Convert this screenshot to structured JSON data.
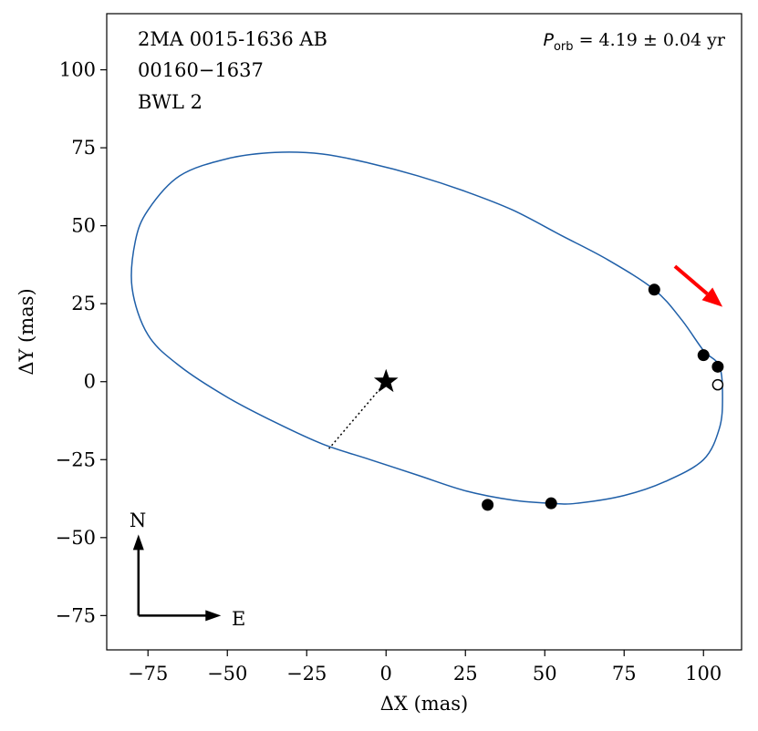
{
  "chart_data": {
    "type": "scatter",
    "title": "",
    "xlabel": "ΔX  (mas)",
    "ylabel": "ΔY  (mas)",
    "xlim": [
      -88,
      112
    ],
    "ylim": [
      -86,
      118
    ],
    "x_ticks": [
      -75,
      -50,
      -25,
      0,
      25,
      50,
      75,
      100
    ],
    "x_tick_labels": [
      "−75",
      "−50",
      "−25",
      "0",
      "25",
      "50",
      "75",
      "100"
    ],
    "y_ticks": [
      -75,
      -50,
      -25,
      0,
      25,
      50,
      75,
      100
    ],
    "y_tick_labels": [
      "−75",
      "−50",
      "−25",
      "0",
      "25",
      "50",
      "75",
      "100"
    ],
    "grid": false,
    "annotations": {
      "system_name": "2MA 0015-1636 AB",
      "wds_id": "00160−1637",
      "discoverer": "BWL 2",
      "period_symbol": "P",
      "period_subscript": "orb",
      "period_text": " =  4.19 ±  0.04 yr",
      "north_label": "N",
      "east_label": "E"
    },
    "primary_star": {
      "x": 0,
      "y": 0
    },
    "orbit_ellipse_points": [
      [
        105,
        5
      ],
      [
        106,
        -5
      ],
      [
        105,
        -15
      ],
      [
        100,
        -25
      ],
      [
        88,
        -32
      ],
      [
        75,
        -36.5
      ],
      [
        60,
        -39
      ],
      [
        52,
        -39
      ],
      [
        40,
        -38
      ],
      [
        25,
        -35
      ],
      [
        10,
        -30
      ],
      [
        -5,
        -25
      ],
      [
        -20,
        -20
      ],
      [
        -35,
        -13
      ],
      [
        -50,
        -5
      ],
      [
        -65,
        5
      ],
      [
        -75,
        15
      ],
      [
        -80,
        30
      ],
      [
        -79,
        45
      ],
      [
        -75,
        55
      ],
      [
        -65,
        66
      ],
      [
        -50,
        71.5
      ],
      [
        -35,
        73.5
      ],
      [
        -20,
        73
      ],
      [
        -5,
        70
      ],
      [
        10,
        66
      ],
      [
        25,
        61
      ],
      [
        40,
        55
      ],
      [
        55,
        47
      ],
      [
        70,
        39
      ],
      [
        84.5,
        29.5
      ],
      [
        93,
        20
      ],
      [
        100,
        10
      ],
      [
        105,
        5
      ]
    ],
    "periastron_line": {
      "from": [
        0,
        0
      ],
      "to": [
        -18,
        -21.5
      ]
    },
    "observed_points": [
      {
        "x": 84.5,
        "y": 29.5
      },
      {
        "x": 100,
        "y": 8.5
      },
      {
        "x": 104.5,
        "y": 4.8
      },
      {
        "x": 52,
        "y": -39
      },
      {
        "x": 32,
        "y": -39.5
      }
    ],
    "predicted_points": [
      {
        "x": 104.5,
        "y": -1
      }
    ],
    "motion_arrow": {
      "from": [
        91,
        37
      ],
      "to": [
        106,
        24
      ],
      "color": "#ff0000"
    },
    "compass": {
      "origin": [
        -78,
        -75
      ],
      "north_tip": [
        -78,
        -49
      ],
      "east_tip": [
        -52,
        -75
      ]
    },
    "colors": {
      "orbit": "#1f5fa8",
      "points": "#000000",
      "arrow": "#ff0000"
    }
  }
}
